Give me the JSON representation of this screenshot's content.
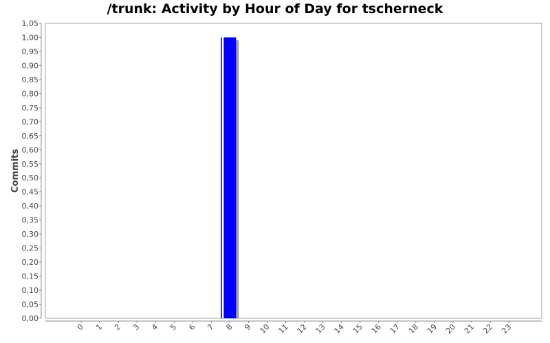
{
  "chart_data": {
    "type": "bar",
    "title": "/trunk: Activity by Hour of Day for tscherneck",
    "xlabel": "",
    "ylabel": "Commits",
    "categories": [
      "0",
      "1",
      "2",
      "3",
      "4",
      "5",
      "6",
      "7",
      "8",
      "9",
      "10",
      "11",
      "12",
      "13",
      "14",
      "15",
      "16",
      "17",
      "18",
      "19",
      "20",
      "21",
      "22",
      "23"
    ],
    "values": [
      0,
      0,
      0,
      0,
      0,
      0,
      0,
      0,
      1,
      0,
      0,
      0,
      0,
      0,
      0,
      0,
      0,
      0,
      0,
      0,
      0,
      0,
      0,
      0
    ],
    "ylim": [
      0,
      1.05
    ],
    "yticks": [
      "0,00",
      "0,05",
      "0,10",
      "0,15",
      "0,20",
      "0,25",
      "0,30",
      "0,35",
      "0,40",
      "0,45",
      "0,50",
      "0,55",
      "0,60",
      "0,65",
      "0,70",
      "0,75",
      "0,80",
      "0,85",
      "0,90",
      "0,95",
      "1,00",
      "1,05"
    ],
    "grid": false,
    "legend": "none",
    "bar_color": "#0000ff",
    "shadow_color": "#a0a0a0"
  }
}
